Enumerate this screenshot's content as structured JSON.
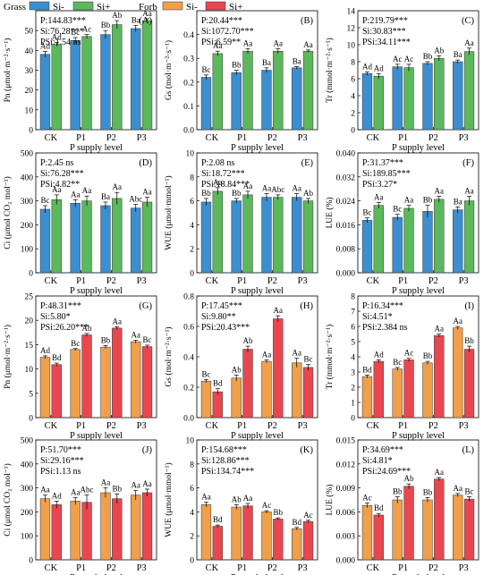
{
  "legend": {
    "items": [
      {
        "group": "Grass",
        "label": "Si-",
        "color": "#3b8fd0"
      },
      {
        "group": "Grass",
        "label": "Si+",
        "color": "#5cb85c"
      },
      {
        "group": "Forb",
        "label": "Si-",
        "color": "#f0a04b"
      },
      {
        "group": "Forb",
        "label": "Si+",
        "color": "#e8474f"
      }
    ],
    "groups": [
      "Grass",
      "Forb"
    ]
  },
  "chart_data": [
    {
      "type": "bar",
      "panel": "(A)",
      "ylabel": "Pn (μmol·m⁻²·s⁻¹)",
      "xlabel": "P supply level",
      "categories": [
        "CK",
        "P1",
        "P2",
        "P3"
      ],
      "ylim": [
        0,
        60
      ],
      "yticks": [
        0,
        10,
        20,
        30,
        40,
        50
      ],
      "stats": [
        "P:144.83***",
        "Si:76.28***",
        "PSi:1.54 ns"
      ],
      "series": [
        {
          "name": "Si-",
          "color": "#3b8fd0",
          "values": [
            38,
            45,
            48,
            51
          ],
          "errors": [
            1.5,
            1.5,
            2,
            1.5
          ],
          "letters": [
            "Ad",
            "Bc",
            "Bb",
            "Ba"
          ]
        },
        {
          "name": "Si+",
          "color": "#5cb85c",
          "values": [
            43,
            47,
            53,
            55
          ],
          "errors": [
            1,
            1,
            2,
            1
          ],
          "letters": [
            "Ad",
            "Ac",
            "Ab",
            "Aa"
          ]
        }
      ]
    },
    {
      "type": "bar",
      "panel": "(B)",
      "ylabel": "Gs (mol·m⁻²·s⁻¹)",
      "xlabel": "P supply level",
      "categories": [
        "CK",
        "P1",
        "P2",
        "P3"
      ],
      "ylim": [
        0,
        0.5
      ],
      "yticks": [
        0,
        0.1,
        0.2,
        0.3,
        0.4
      ],
      "decimals": 1,
      "stats": [
        "P:20.44***",
        "Si:1072.70***",
        "PSi:6.59**"
      ],
      "series": [
        {
          "name": "Si-",
          "color": "#3b8fd0",
          "values": [
            0.22,
            0.24,
            0.25,
            0.26
          ],
          "errors": [
            0.01,
            0.01,
            0.01,
            0.005
          ],
          "letters": [
            "Bc",
            "Bb",
            "Ba",
            "Ba"
          ]
        },
        {
          "name": "Si+",
          "color": "#5cb85c",
          "values": [
            0.32,
            0.33,
            0.33,
            0.33
          ],
          "errors": [
            0.01,
            0.01,
            0.01,
            0.005
          ],
          "letters": [
            "Aa",
            "Aa",
            "Aa",
            "Aa"
          ]
        }
      ]
    },
    {
      "type": "bar",
      "panel": "(C)",
      "ylabel": "Tr (mmol·m⁻²·s⁻¹)",
      "xlabel": "P supply level",
      "categories": [
        "CK",
        "P1",
        "P2",
        "P3"
      ],
      "ylim": [
        0,
        14
      ],
      "yticks": [
        0,
        2,
        4,
        6,
        8,
        10,
        12,
        14
      ],
      "stats": [
        "P:219.79***",
        "Si:30.83***",
        "PSi:34.11***"
      ],
      "series": [
        {
          "name": "Si-",
          "color": "#3b8fd0",
          "values": [
            6.6,
            7.4,
            7.8,
            8.0
          ],
          "errors": [
            0.2,
            0.3,
            0.2,
            0.2
          ],
          "letters": [
            "Ad",
            "Ac",
            "Bb",
            "Ba"
          ]
        },
        {
          "name": "Si+",
          "color": "#5cb85c",
          "values": [
            6.3,
            7.3,
            8.4,
            9.2
          ],
          "errors": [
            0.3,
            0.4,
            0.3,
            0.4
          ],
          "letters": [
            "Ad",
            "Ac",
            "Ab",
            "Aa"
          ]
        }
      ]
    },
    {
      "type": "bar",
      "panel": "(D)",
      "ylabel": "Ci (μmol CO₂ mol⁻¹)",
      "xlabel": "P supply level",
      "categories": [
        "CK",
        "P1",
        "P2",
        "P3"
      ],
      "ylim": [
        0,
        500
      ],
      "yticks": [
        0,
        100,
        200,
        300,
        400,
        500
      ],
      "stats": [
        "P:2.45 ns",
        "Si:76.28***",
        "PSi:4.82**"
      ],
      "series": [
        {
          "name": "Si-",
          "color": "#3b8fd0",
          "values": [
            265,
            290,
            280,
            270
          ],
          "errors": [
            15,
            15,
            15,
            15
          ],
          "letters": [
            "Bc",
            "Aa",
            "Ba",
            "Abc"
          ]
        },
        {
          "name": "Si+",
          "color": "#5cb85c",
          "values": [
            305,
            300,
            310,
            295
          ],
          "errors": [
            20,
            20,
            25,
            20
          ],
          "letters": [
            "Aa",
            "Aa",
            "Aa",
            "Aa"
          ]
        }
      ]
    },
    {
      "type": "bar",
      "panel": "(E)",
      "ylabel": "WUE (μmol·mmol⁻¹)",
      "xlabel": "P supply level",
      "categories": [
        "CK",
        "P1",
        "P2",
        "P3"
      ],
      "ylim": [
        0,
        10
      ],
      "yticks": [
        0,
        2,
        4,
        6,
        8,
        10
      ],
      "stats": [
        "P:2.08 ns",
        "Si:18.72***",
        "PSi:18.84***"
      ],
      "series": [
        {
          "name": "Si-",
          "color": "#3b8fd0",
          "values": [
            5.9,
            6.0,
            6.3,
            6.3
          ],
          "errors": [
            0.3,
            0.2,
            0.3,
            0.3
          ],
          "letters": [
            "Bb",
            "Bb",
            "Aa",
            "Aa"
          ]
        },
        {
          "name": "Si+",
          "color": "#5cb85c",
          "values": [
            6.8,
            6.5,
            6.3,
            6.0
          ],
          "errors": [
            0.3,
            0.3,
            0.2,
            0.2
          ],
          "letters": [
            "Aa",
            "Aa",
            "Abc",
            "Ab"
          ]
        }
      ]
    },
    {
      "type": "bar",
      "panel": "(F)",
      "ylabel": "LUE (%)",
      "xlabel": "P supply level",
      "categories": [
        "CK",
        "P1",
        "P2",
        "P3"
      ],
      "ylim": [
        0,
        0.04
      ],
      "yticks": [
        0,
        0.008,
        0.016,
        0.024,
        0.032,
        0.04
      ],
      "decimals": 3,
      "stats": [
        "P:31.37***",
        "Si:189.85***",
        "PSi:3.27*"
      ],
      "series": [
        {
          "name": "Si-",
          "color": "#3b8fd0",
          "values": [
            0.0175,
            0.0185,
            0.0205,
            0.021
          ],
          "errors": [
            0.0008,
            0.001,
            0.002,
            0.001
          ],
          "letters": [
            "Bc",
            "Bc",
            "Bb",
            "Ba"
          ]
        },
        {
          "name": "Si+",
          "color": "#5cb85c",
          "values": [
            0.0225,
            0.0215,
            0.0245,
            0.024
          ],
          "errors": [
            0.001,
            0.001,
            0.001,
            0.0015
          ],
          "letters": [
            "Aa",
            "Aa",
            "Aa",
            "Aa"
          ]
        }
      ]
    },
    {
      "type": "bar",
      "panel": "(G)",
      "ylabel": "Pn (μmol·m⁻²·s⁻¹)",
      "xlabel": "P supply level",
      "categories": [
        "CK",
        "P1",
        "P2",
        "P3"
      ],
      "ylim": [
        0,
        25
      ],
      "yticks": [
        0,
        5,
        10,
        15,
        20,
        25
      ],
      "stats": [
        "P:48.31***",
        "Si:5.80*",
        "PSi:26.20***"
      ],
      "series": [
        {
          "name": "Si-",
          "color": "#f0a04b",
          "values": [
            12.4,
            14.0,
            14.5,
            15.6
          ],
          "errors": [
            0.3,
            0.2,
            0.3,
            0.3
          ],
          "letters": [
            "Ad",
            "Bc",
            "Bb",
            "Aa"
          ]
        },
        {
          "name": "Si+",
          "color": "#e8474f",
          "values": [
            10.9,
            17.0,
            18.4,
            14.6
          ],
          "errors": [
            0.3,
            0.3,
            0.3,
            0.3
          ],
          "letters": [
            "Bd",
            "Ab",
            "Aa",
            "Bc"
          ]
        }
      ]
    },
    {
      "type": "bar",
      "panel": "(H)",
      "ylabel": "Gs (mol·m⁻²·s⁻¹)",
      "xlabel": "P supply level",
      "categories": [
        "CK",
        "P1",
        "P2",
        "P3"
      ],
      "ylim": [
        0,
        0.8
      ],
      "yticks": [
        0,
        0.2,
        0.4,
        0.6,
        0.8
      ],
      "decimals": 1,
      "stats": [
        "P:17.45***",
        "Si:9.80**",
        "PSi:20.43***"
      ],
      "series": [
        {
          "name": "Si-",
          "color": "#f0a04b",
          "values": [
            0.24,
            0.26,
            0.37,
            0.36
          ],
          "errors": [
            0.01,
            0.02,
            0.01,
            0.03
          ],
          "letters": [
            "Bc",
            "Ab",
            "Aa",
            "Aa"
          ]
        },
        {
          "name": "Si+",
          "color": "#e8474f",
          "values": [
            0.17,
            0.45,
            0.65,
            0.33
          ],
          "errors": [
            0.02,
            0.02,
            0.02,
            0.02
          ],
          "letters": [
            "Bd",
            "Ab",
            "Aa",
            "Bc"
          ]
        }
      ]
    },
    {
      "type": "bar",
      "panel": "(I)",
      "ylabel": "Tr (mmol·m⁻²·s⁻¹)",
      "xlabel": "P supply level",
      "categories": [
        "CK",
        "P1",
        "P2",
        "P3"
      ],
      "ylim": [
        0,
        8
      ],
      "yticks": [
        0,
        1,
        2,
        3,
        4,
        5,
        6,
        7,
        8
      ],
      "stats": [
        "P:16.34***",
        "Si:4.51*",
        "PSi:2.384 ns"
      ],
      "series": [
        {
          "name": "Si-",
          "color": "#f0a04b",
          "values": [
            2.7,
            3.2,
            3.6,
            5.9
          ],
          "errors": [
            0.1,
            0.1,
            0.1,
            0.1
          ],
          "letters": [
            "Bd",
            "Bc",
            "Bb",
            "Aa"
          ]
        },
        {
          "name": "Si+",
          "color": "#e8474f",
          "values": [
            3.7,
            3.8,
            5.4,
            4.5
          ],
          "errors": [
            0.1,
            0.1,
            0.1,
            0.2
          ],
          "letters": [
            "Ad",
            "Ac",
            "Aa",
            "Bb"
          ]
        }
      ]
    },
    {
      "type": "bar",
      "panel": "(J)",
      "ylabel": "Ci (μmol CO₂ mol⁻¹)",
      "xlabel": "P supply level",
      "categories": [
        "CK",
        "P1",
        "P2",
        "P3"
      ],
      "ylim": [
        0,
        500
      ],
      "yticks": [
        0,
        100,
        200,
        300,
        400,
        500
      ],
      "stats": [
        "P:51.70***",
        "Si:29.16***",
        "PSi:1.13 ns"
      ],
      "series": [
        {
          "name": "Si-",
          "color": "#f0a04b",
          "values": [
            255,
            245,
            280,
            270
          ],
          "errors": [
            15,
            15,
            20,
            20
          ],
          "letters": [
            "Aa",
            "Aa",
            "Aa",
            "Aa"
          ]
        },
        {
          "name": "Si+",
          "color": "#e8474f",
          "values": [
            230,
            240,
            255,
            280
          ],
          "errors": [
            15,
            30,
            20,
            15
          ],
          "letters": [
            "Ad",
            "Abc",
            "Bb",
            "Aa"
          ]
        }
      ]
    },
    {
      "type": "bar",
      "panel": "(K)",
      "ylabel": "WUE (μmol·mmol⁻¹)",
      "xlabel": "P supply level",
      "categories": [
        "CK",
        "P1",
        "P2",
        "P3"
      ],
      "ylim": [
        0,
        10
      ],
      "yticks": [
        0,
        2,
        4,
        6,
        8,
        10
      ],
      "stats": [
        "P:154.68***",
        "Si:128.86***",
        "PSi:134.74***"
      ],
      "series": [
        {
          "name": "Si-",
          "color": "#f0a04b",
          "values": [
            4.6,
            4.4,
            4.0,
            2.6
          ],
          "errors": [
            0.2,
            0.2,
            0.1,
            0.1
          ],
          "letters": [
            "Aa",
            "Ab",
            "Ac",
            "Bd"
          ]
        },
        {
          "name": "Si+",
          "color": "#e8474f",
          "values": [
            2.8,
            4.5,
            3.4,
            3.2
          ],
          "errors": [
            0.1,
            0.2,
            0.1,
            0.1
          ],
          "letters": [
            "Bd",
            "Aa",
            "Bb",
            "Ac"
          ]
        }
      ]
    },
    {
      "type": "bar",
      "panel": "(L)",
      "ylabel": "LUE (%)",
      "xlabel": "P supply level",
      "categories": [
        "CK",
        "P1",
        "P2",
        "P3"
      ],
      "ylim": [
        0,
        0.015
      ],
      "yticks": [
        0,
        0.003,
        0.006,
        0.009,
        0.012,
        0.015
      ],
      "decimals": 3,
      "stats": [
        "P:34.69***",
        "Si:4.81*",
        "PSi:24.69***"
      ],
      "series": [
        {
          "name": "Si-",
          "color": "#f0a04b",
          "values": [
            0.0068,
            0.0075,
            0.0075,
            0.0081
          ],
          "errors": [
            0.0003,
            0.0004,
            0.0003,
            0.0002
          ],
          "letters": [
            "Ac",
            "Bb",
            "Bb",
            "Aa"
          ]
        },
        {
          "name": "Si+",
          "color": "#e8474f",
          "values": [
            0.0056,
            0.0092,
            0.0101,
            0.0076
          ],
          "errors": [
            0.0002,
            0.0003,
            0.0002,
            0.0003
          ],
          "letters": [
            "Bd",
            "Ab",
            "Aa",
            "Bc"
          ]
        }
      ]
    }
  ]
}
